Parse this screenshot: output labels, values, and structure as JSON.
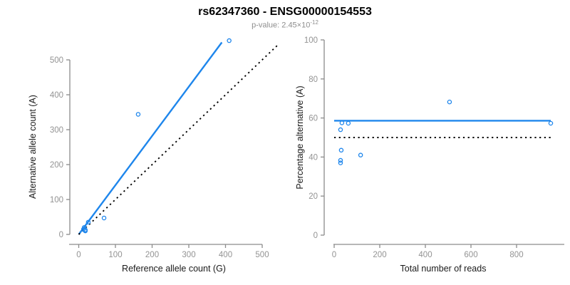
{
  "figure": {
    "title": "rs62347360 - ENSG00000154553",
    "subtitle_prefix": "p-value: 2.45×10",
    "subtitle_exponent": "-12"
  },
  "colors": {
    "accent_blue": "#1e86ec",
    "axis_gray": "#8c8c8c",
    "tick_label_gray": "#939393",
    "label_black": "#1a1a1a",
    "dotted_black": "#000000"
  },
  "chart_data": [
    {
      "id": "allele-counts",
      "type": "scatter",
      "xlabel": "Reference allele count (G)",
      "ylabel": "Alternative allele count (A)",
      "xlim": [
        0,
        545
      ],
      "ylim": [
        0,
        560
      ],
      "xticks": [
        0,
        100,
        200,
        300,
        400,
        500
      ],
      "yticks": [
        0,
        100,
        200,
        300,
        400,
        500
      ],
      "grid": false,
      "points": [
        [
          13,
          15
        ],
        [
          15,
          20
        ],
        [
          17,
          11
        ],
        [
          18,
          10
        ],
        [
          18,
          13
        ],
        [
          26,
          35
        ],
        [
          69,
          47
        ],
        [
          162,
          344
        ],
        [
          410,
          555
        ]
      ],
      "lines": [
        {
          "name": "fitted-ratio-line",
          "style": "solid",
          "color_key": "accent_blue",
          "from": [
            0,
            0
          ],
          "to": [
            390,
            550
          ]
        },
        {
          "name": "identity-line",
          "style": "dotted",
          "color_key": "dotted_black",
          "from": [
            0,
            0
          ],
          "to": [
            545,
            545
          ]
        }
      ]
    },
    {
      "id": "percentage",
      "type": "scatter",
      "xlabel": "Total number of reads",
      "ylabel": "Percentage alternative (A)",
      "xlim": [
        0,
        1010
      ],
      "ylim": [
        0,
        100
      ],
      "xticks": [
        0,
        200,
        400,
        600,
        800
      ],
      "yticks": [
        0,
        20,
        40,
        60,
        80,
        100
      ],
      "grid": false,
      "points": [
        [
          28,
          54
        ],
        [
          28,
          38.3
        ],
        [
          28,
          37
        ],
        [
          31,
          43.5
        ],
        [
          34,
          57.5
        ],
        [
          62,
          57.3
        ],
        [
          116,
          41
        ],
        [
          506,
          68.2
        ],
        [
          950,
          57.3
        ]
      ],
      "lines": [
        {
          "name": "fitted-percentage-line",
          "style": "solid",
          "color_key": "accent_blue",
          "from": [
            0,
            58.6
          ],
          "to": [
            950,
            58.6
          ]
        },
        {
          "name": "null-50pct-line",
          "style": "dotted",
          "color_key": "dotted_black",
          "from": [
            0,
            50
          ],
          "to": [
            950,
            50
          ]
        }
      ]
    }
  ]
}
